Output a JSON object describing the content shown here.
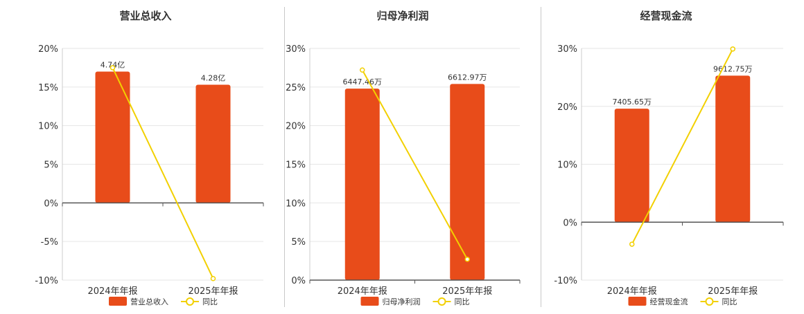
{
  "colors": {
    "bar": "#e84c1a",
    "line": "#f2d000",
    "grid": "#e6e6e6",
    "axis": "#555555"
  },
  "chart_data": [
    {
      "type": "bar",
      "title": "营业总收入",
      "categories": [
        "2024年年报",
        "2025年年报"
      ],
      "ylim": [
        -10,
        20
      ],
      "yticks": [
        20,
        15,
        10,
        5,
        0,
        -5,
        -10
      ],
      "series": [
        {
          "name": "营业总收入",
          "kind": "bar",
          "values": [
            17,
            15.3
          ],
          "labels": [
            "4.74亿",
            "4.28亿"
          ]
        },
        {
          "name": "同比",
          "kind": "line",
          "values": [
            17.5,
            -9.8
          ]
        }
      ],
      "legend": "bottom",
      "grid": true
    },
    {
      "type": "bar",
      "title": "归母净利润",
      "categories": [
        "2024年年报",
        "2025年年报"
      ],
      "ylim": [
        0,
        30
      ],
      "yticks": [
        30,
        25,
        20,
        15,
        10,
        5,
        0
      ],
      "series": [
        {
          "name": "归母净利润",
          "kind": "bar",
          "values": [
            24.8,
            25.4
          ],
          "labels": [
            "6447.46万",
            "6612.97万"
          ]
        },
        {
          "name": "同比",
          "kind": "line",
          "values": [
            27.2,
            2.7
          ]
        }
      ],
      "legend": "bottom",
      "grid": true
    },
    {
      "type": "bar",
      "title": "经营现金流",
      "categories": [
        "2024年年报",
        "2025年年报"
      ],
      "ylim": [
        -10,
        30
      ],
      "yticks": [
        30,
        20,
        10,
        0,
        -10
      ],
      "series": [
        {
          "name": "经营现金流",
          "kind": "bar",
          "values": [
            19.6,
            25.3
          ],
          "labels": [
            "7405.65万",
            "9612.75万"
          ]
        },
        {
          "name": "同比",
          "kind": "line",
          "values": [
            -3.8,
            29.9
          ]
        }
      ],
      "legend": "bottom",
      "grid": true
    }
  ]
}
